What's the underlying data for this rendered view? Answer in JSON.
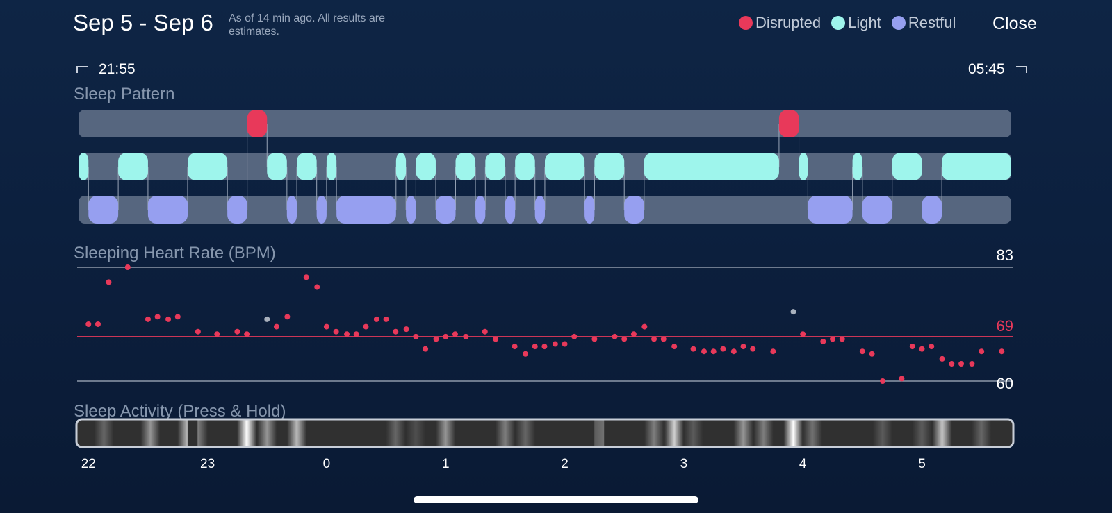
{
  "header": {
    "title": "Sep 5 - Sep 6",
    "subtitle": "As of 14 min ago. All results are estimates.",
    "close_label": "Close"
  },
  "legend": [
    {
      "label": "Disrupted",
      "color": "#e8395a"
    },
    {
      "label": "Light",
      "color": "#9ef5ec"
    },
    {
      "label": "Restful",
      "color": "#969ff0"
    }
  ],
  "time_range": {
    "start": "21:55",
    "end": "05:45"
  },
  "sleep_pattern": {
    "label": "Sleep Pattern",
    "start_hour": -2.0833,
    "end_hour": 5.75,
    "disrupted": [
      [
        -0.6667,
        -0.5
      ],
      [
        3.8,
        3.9667
      ]
    ],
    "light": [
      [
        -2.0833,
        -2.0
      ],
      [
        -1.75,
        -1.5
      ],
      [
        -1.1667,
        -0.8333
      ],
      [
        -0.5,
        -0.3333
      ],
      [
        -0.25,
        -0.0833
      ],
      [
        0.0,
        0.0833
      ],
      [
        0.5833,
        0.6667
      ],
      [
        0.75,
        0.9167
      ],
      [
        1.0833,
        1.25
      ],
      [
        1.3333,
        1.5
      ],
      [
        1.5833,
        1.75
      ],
      [
        1.8333,
        2.1667
      ],
      [
        2.25,
        2.5
      ],
      [
        2.6667,
        3.8
      ],
      [
        3.9667,
        4.0417
      ],
      [
        4.4167,
        4.5
      ],
      [
        4.75,
        5.0
      ],
      [
        5.1667,
        5.75
      ]
    ],
    "restful": [
      [
        -2.0,
        -1.75
      ],
      [
        -1.5,
        -1.1667
      ],
      [
        -0.8333,
        -0.6667
      ],
      [
        -0.3333,
        -0.25
      ],
      [
        -0.0833,
        0.0
      ],
      [
        0.0833,
        0.5833
      ],
      [
        0.6667,
        0.75
      ],
      [
        0.9167,
        1.0833
      ],
      [
        1.25,
        1.3333
      ],
      [
        1.5,
        1.5833
      ],
      [
        1.75,
        1.8333
      ],
      [
        2.1667,
        2.25
      ],
      [
        2.5,
        2.6667
      ],
      [
        4.0417,
        4.4167
      ],
      [
        4.5,
        4.75
      ],
      [
        5.0,
        5.1667
      ]
    ]
  },
  "heart_rate": {
    "label": "Sleeping Heart Rate (BPM)",
    "max_label": "83",
    "avg_label": "69",
    "min_label": "60",
    "max": 83,
    "avg": 69,
    "min": 60,
    "points": [
      [
        -2.0,
        71.5
      ],
      [
        -1.92,
        71.5
      ],
      [
        -1.83,
        80
      ],
      [
        -1.67,
        83
      ],
      [
        -1.5,
        72.5
      ],
      [
        -1.42,
        73
      ],
      [
        -1.33,
        72.5
      ],
      [
        -1.25,
        73
      ],
      [
        -1.08,
        70
      ],
      [
        -0.92,
        69.5
      ],
      [
        -0.75,
        70
      ],
      [
        -0.67,
        69.5
      ],
      [
        -0.5,
        72.5,
        "gray"
      ],
      [
        -0.42,
        71
      ],
      [
        -0.33,
        73
      ],
      [
        -0.17,
        81
      ],
      [
        -0.08,
        79
      ],
      [
        0.0,
        71
      ],
      [
        0.08,
        70
      ],
      [
        0.17,
        69.5
      ],
      [
        0.25,
        69.5
      ],
      [
        0.33,
        71
      ],
      [
        0.42,
        72.5
      ],
      [
        0.5,
        72.5
      ],
      [
        0.58,
        70
      ],
      [
        0.67,
        70.5
      ],
      [
        0.75,
        69
      ],
      [
        0.83,
        66.5
      ],
      [
        0.92,
        68.5
      ],
      [
        1.0,
        69
      ],
      [
        1.08,
        69.5
      ],
      [
        1.17,
        69
      ],
      [
        1.33,
        70
      ],
      [
        1.42,
        68.5
      ],
      [
        1.58,
        67
      ],
      [
        1.67,
        65.5
      ],
      [
        1.75,
        67
      ],
      [
        1.83,
        67
      ],
      [
        1.92,
        67.5
      ],
      [
        2.0,
        67.5
      ],
      [
        2.08,
        69
      ],
      [
        2.25,
        68.5
      ],
      [
        2.42,
        69
      ],
      [
        2.5,
        68.5
      ],
      [
        2.58,
        69.5
      ],
      [
        2.67,
        71
      ],
      [
        2.75,
        68.5
      ],
      [
        2.83,
        68.5
      ],
      [
        2.92,
        67
      ],
      [
        3.08,
        66.5
      ],
      [
        3.17,
        66
      ],
      [
        3.25,
        66
      ],
      [
        3.33,
        66.5
      ],
      [
        3.42,
        66
      ],
      [
        3.5,
        67
      ],
      [
        3.58,
        66.5
      ],
      [
        3.75,
        66
      ],
      [
        3.92,
        74,
        "gray"
      ],
      [
        4.0,
        69.5
      ],
      [
        4.17,
        68
      ],
      [
        4.25,
        68.5
      ],
      [
        4.33,
        68.5
      ],
      [
        4.5,
        66
      ],
      [
        4.58,
        65.5
      ],
      [
        4.67,
        60
      ],
      [
        4.83,
        60.5
      ],
      [
        4.92,
        67
      ],
      [
        5.0,
        66.5
      ],
      [
        5.08,
        67
      ],
      [
        5.17,
        64.5
      ],
      [
        5.25,
        63.5
      ],
      [
        5.33,
        63.5
      ],
      [
        5.42,
        63.5
      ],
      [
        5.5,
        66
      ],
      [
        5.67,
        66
      ]
    ]
  },
  "sleep_activity": {
    "label": "Sleep Activity (Press & Hold)",
    "bands": [
      [
        -1.87,
        0.35
      ],
      [
        -1.48,
        0.55
      ],
      [
        -1.17,
        0.7
      ],
      [
        -1.08,
        0.45
      ],
      [
        -0.67,
        1.0
      ],
      [
        -0.5,
        0.55
      ],
      [
        -0.25,
        0.7
      ],
      [
        0.58,
        0.35
      ],
      [
        0.75,
        0.25
      ],
      [
        1.0,
        0.55
      ],
      [
        1.5,
        0.45
      ],
      [
        1.67,
        0.35
      ],
      [
        2.25,
        0.3
      ],
      [
        2.33,
        0.4
      ],
      [
        2.75,
        0.45
      ],
      [
        2.92,
        0.8
      ],
      [
        3.08,
        0.3
      ],
      [
        3.5,
        0.55
      ],
      [
        3.67,
        0.45
      ],
      [
        3.92,
        1.0
      ],
      [
        4.08,
        0.4
      ],
      [
        4.67,
        0.3
      ],
      [
        5.0,
        0.3
      ],
      [
        5.17,
        0.75
      ],
      [
        5.5,
        0.35
      ]
    ]
  },
  "x_axis": {
    "ticks": [
      {
        "label": "22",
        "hour": -2
      },
      {
        "label": "23",
        "hour": -1
      },
      {
        "label": "0",
        "hour": 0
      },
      {
        "label": "1",
        "hour": 1
      },
      {
        "label": "2",
        "hour": 2
      },
      {
        "label": "3",
        "hour": 3
      },
      {
        "label": "4",
        "hour": 4
      },
      {
        "label": "5",
        "hour": 5
      }
    ]
  }
}
